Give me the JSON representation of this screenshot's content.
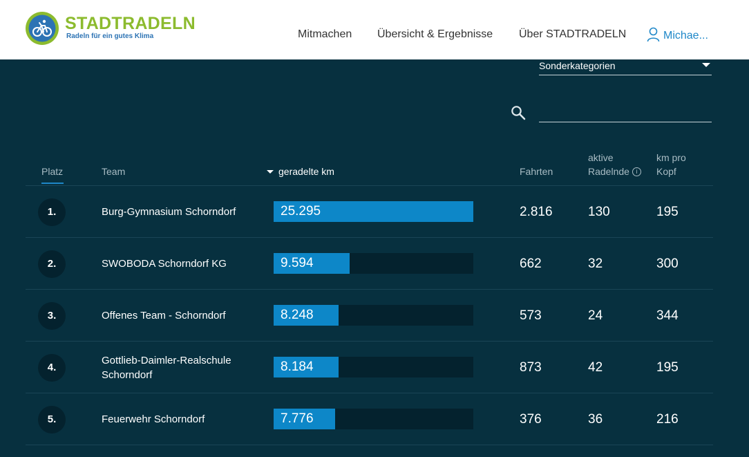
{
  "header": {
    "brand": "STADTRADELN",
    "tagline": "Radeln für ein gutes Klima",
    "nav": [
      "Mitmachen",
      "Übersicht & Ergebnisse",
      "Über STADTRADELN"
    ],
    "user": "Michae..."
  },
  "filters": {
    "category": "Sonderkategorien",
    "search_value": ""
  },
  "table": {
    "headers": {
      "platz": "Platz",
      "team": "Team",
      "km": "geradelte km",
      "fahrten": "Fahrten",
      "aktive_1": "aktive",
      "aktive_2": "Radelnde",
      "kopf_1": "km pro",
      "kopf_2": "Kopf"
    },
    "max_km": 25295,
    "rows": [
      {
        "rank": "1.",
        "team": "Burg-Gymnasium Schorndorf",
        "km": "25.295",
        "km_value": 25295,
        "fahrten": "2.816",
        "aktive": "130",
        "kopf": "195"
      },
      {
        "rank": "2.",
        "team": "SWOBODA Schorndorf KG",
        "km": "9.594",
        "km_value": 9594,
        "fahrten": "662",
        "aktive": "32",
        "kopf": "300"
      },
      {
        "rank": "3.",
        "team": "Offenes Team - Schorndorf",
        "km": "8.248",
        "km_value": 8248,
        "fahrten": "573",
        "aktive": "24",
        "kopf": "344"
      },
      {
        "rank": "4.",
        "team": "Gottlieb-Daimler-Realschule Schorndorf",
        "km": "8.184",
        "km_value": 8184,
        "fahrten": "873",
        "aktive": "42",
        "kopf": "195"
      },
      {
        "rank": "5.",
        "team": "Feuerwehr Schorndorf",
        "km": "7.776",
        "km_value": 7776,
        "fahrten": "376",
        "aktive": "36",
        "kopf": "216"
      }
    ]
  },
  "colors": {
    "background": "#07303f",
    "brand_green": "#8cbb2e",
    "brand_blue": "#2c73b4",
    "bar": "#0d87c8",
    "link": "#1e87c8"
  }
}
